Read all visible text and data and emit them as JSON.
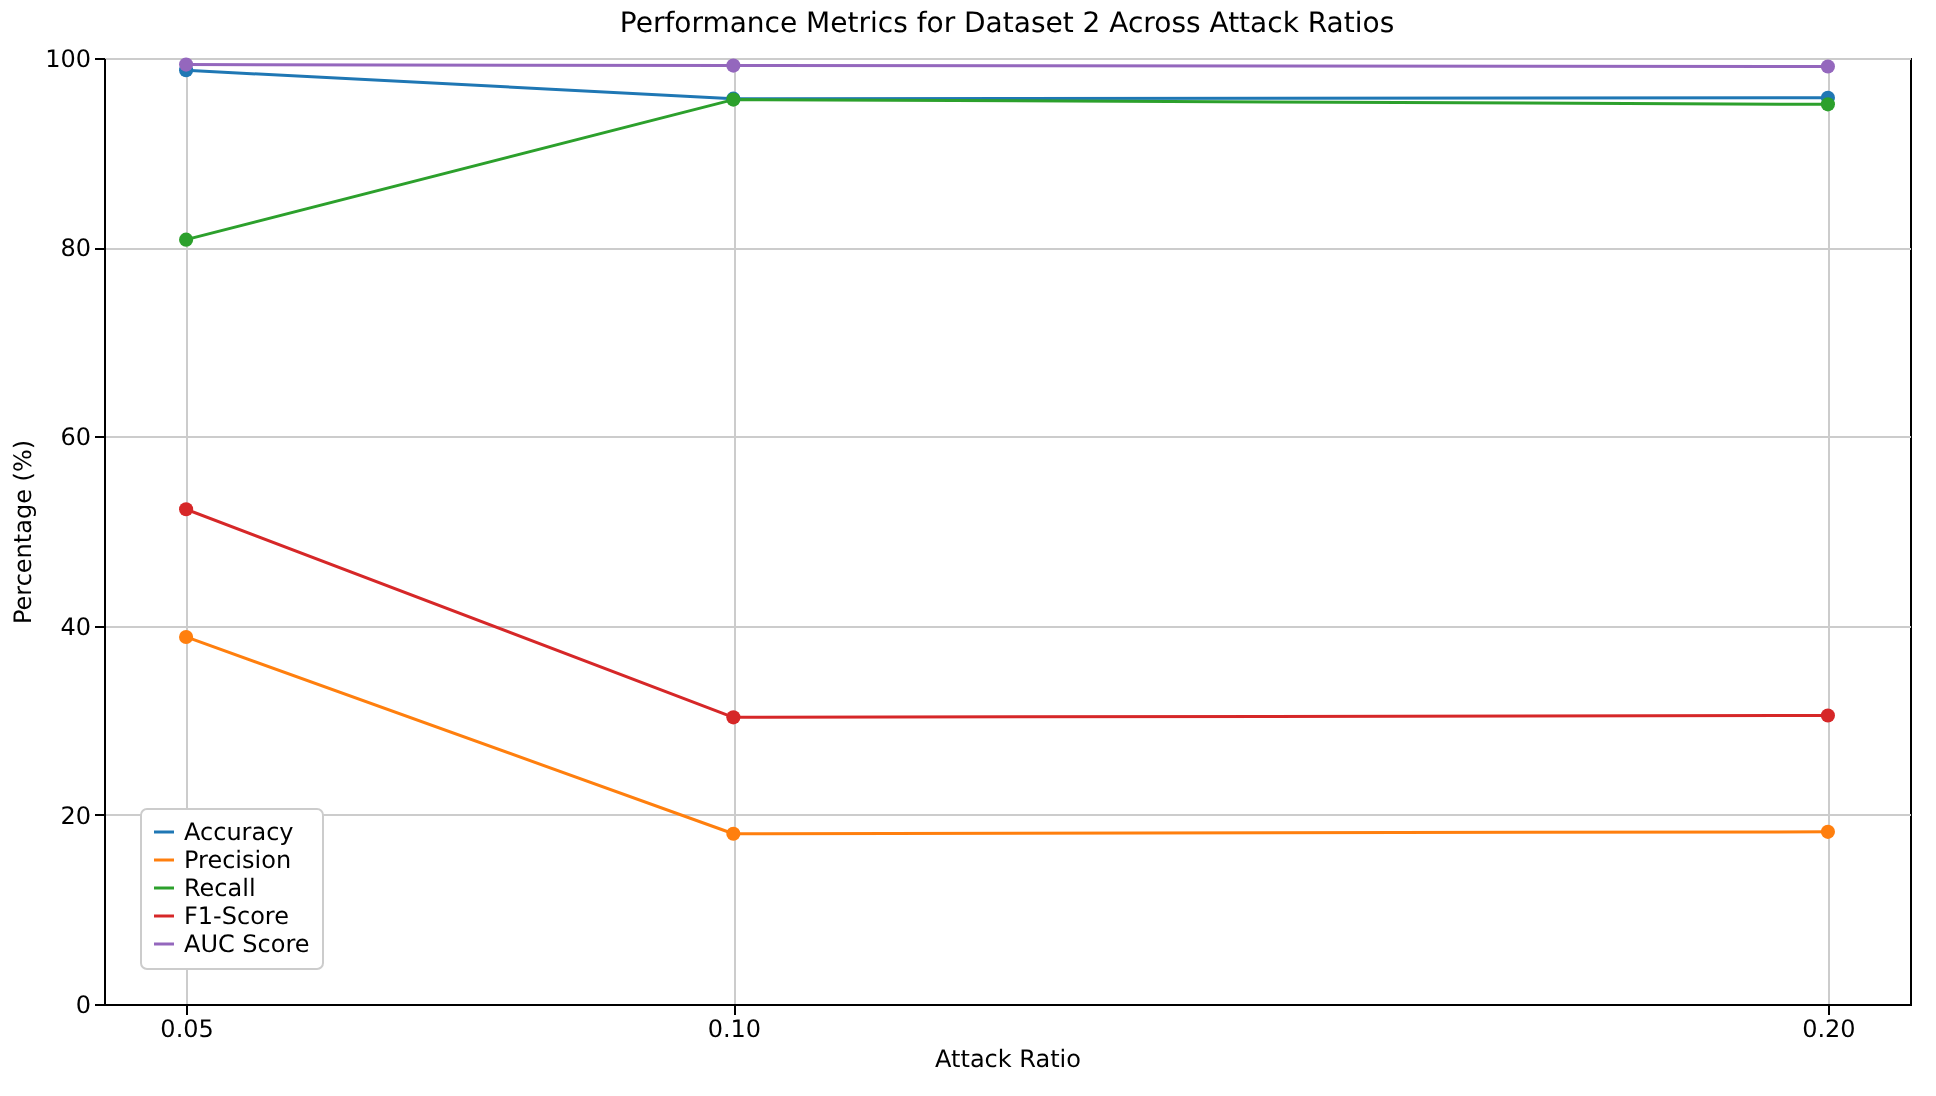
{
  "chart_data": {
    "type": "line",
    "title": "Performance Metrics for Dataset 2 Across Attack Ratios",
    "xlabel": "Attack Ratio",
    "ylabel": "Percentage (%)",
    "x": [
      0.05,
      0.1,
      0.2
    ],
    "series": [
      {
        "name": "Accuracy",
        "color": "#1f77b4",
        "values": [
          98.7,
          95.7,
          95.8
        ]
      },
      {
        "name": "Precision",
        "color": "#ff7f0e",
        "values": [
          38.8,
          18.0,
          18.2
        ]
      },
      {
        "name": "Recall",
        "color": "#2ca02c",
        "values": [
          80.8,
          95.6,
          95.1
        ]
      },
      {
        "name": "F1-Score",
        "color": "#d62728",
        "values": [
          52.3,
          30.3,
          30.5
        ]
      },
      {
        "name": "AUC Score",
        "color": "#9467bd",
        "values": [
          99.3,
          99.2,
          99.1
        ]
      }
    ],
    "xlim": [
      0.0425,
      0.2075
    ],
    "xticks": [
      0.05,
      {
        "value": 0.1,
        "label": "0.10"
      },
      {
        "value": 0.2,
        "label": "0.20"
      }
    ],
    "ylim": [
      0,
      100
    ],
    "yticks": [
      0,
      20,
      40,
      60,
      80,
      100
    ],
    "grid": true,
    "legend": "bottom left",
    "marker": "circle",
    "line_style": "solid"
  }
}
